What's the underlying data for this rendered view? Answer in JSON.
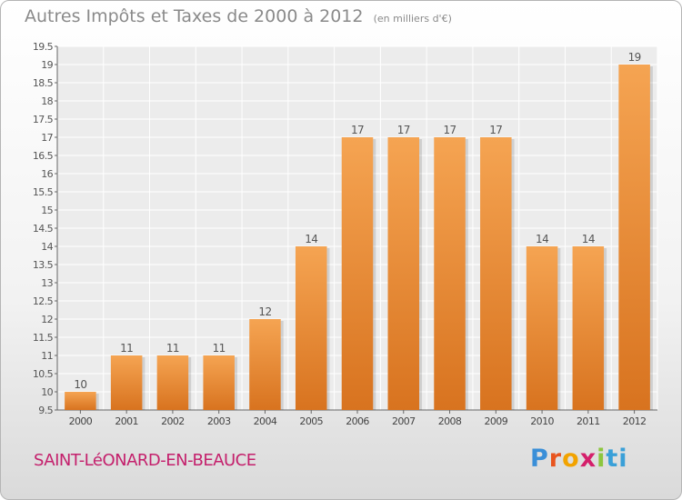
{
  "title": "Autres Impôts et Taxes de 2000 à 2012",
  "subtitle": "(en milliers d'€)",
  "city": "SAINT-LéONARD-EN-BEAUCE",
  "logo_letters": [
    "P",
    "r",
    "o",
    "x",
    "i",
    "ti"
  ],
  "colors": {
    "bar_light": "#f5a452",
    "bar_dark": "#d8731f",
    "title": "#8a8a8a",
    "city": "#c4206c"
  },
  "chart_data": {
    "type": "bar",
    "title": "Autres Impôts et Taxes de 2000 à 2012",
    "subtitle": "(en milliers d'€)",
    "categories": [
      "2000",
      "2001",
      "2002",
      "2003",
      "2004",
      "2005",
      "2006",
      "2007",
      "2008",
      "2009",
      "2010",
      "2011",
      "2012"
    ],
    "values": [
      10,
      11,
      11,
      11,
      12,
      14,
      17,
      17,
      17,
      17,
      14,
      14,
      19
    ],
    "data_labels": [
      "10",
      "11",
      "11",
      "11",
      "12",
      "14",
      "17",
      "17",
      "17",
      "17",
      "14",
      "14",
      "19"
    ],
    "ylim": [
      9.5,
      19.5
    ],
    "yticks": [
      9.5,
      10,
      10.5,
      11,
      11.5,
      12,
      12.5,
      13,
      13.5,
      14,
      14.5,
      15,
      15.5,
      16,
      16.5,
      17,
      17.5,
      18,
      18.5,
      19,
      19.5
    ],
    "ytick_labels": [
      "9.5",
      "10",
      "10.5",
      "11",
      "11.5",
      "12",
      "12.5",
      "13",
      "13.5",
      "14",
      "14.5",
      "15",
      "15.5",
      "16",
      "16.5",
      "17",
      "17.5",
      "18",
      "18.5",
      "19",
      "19.5"
    ],
    "grid": true
  }
}
